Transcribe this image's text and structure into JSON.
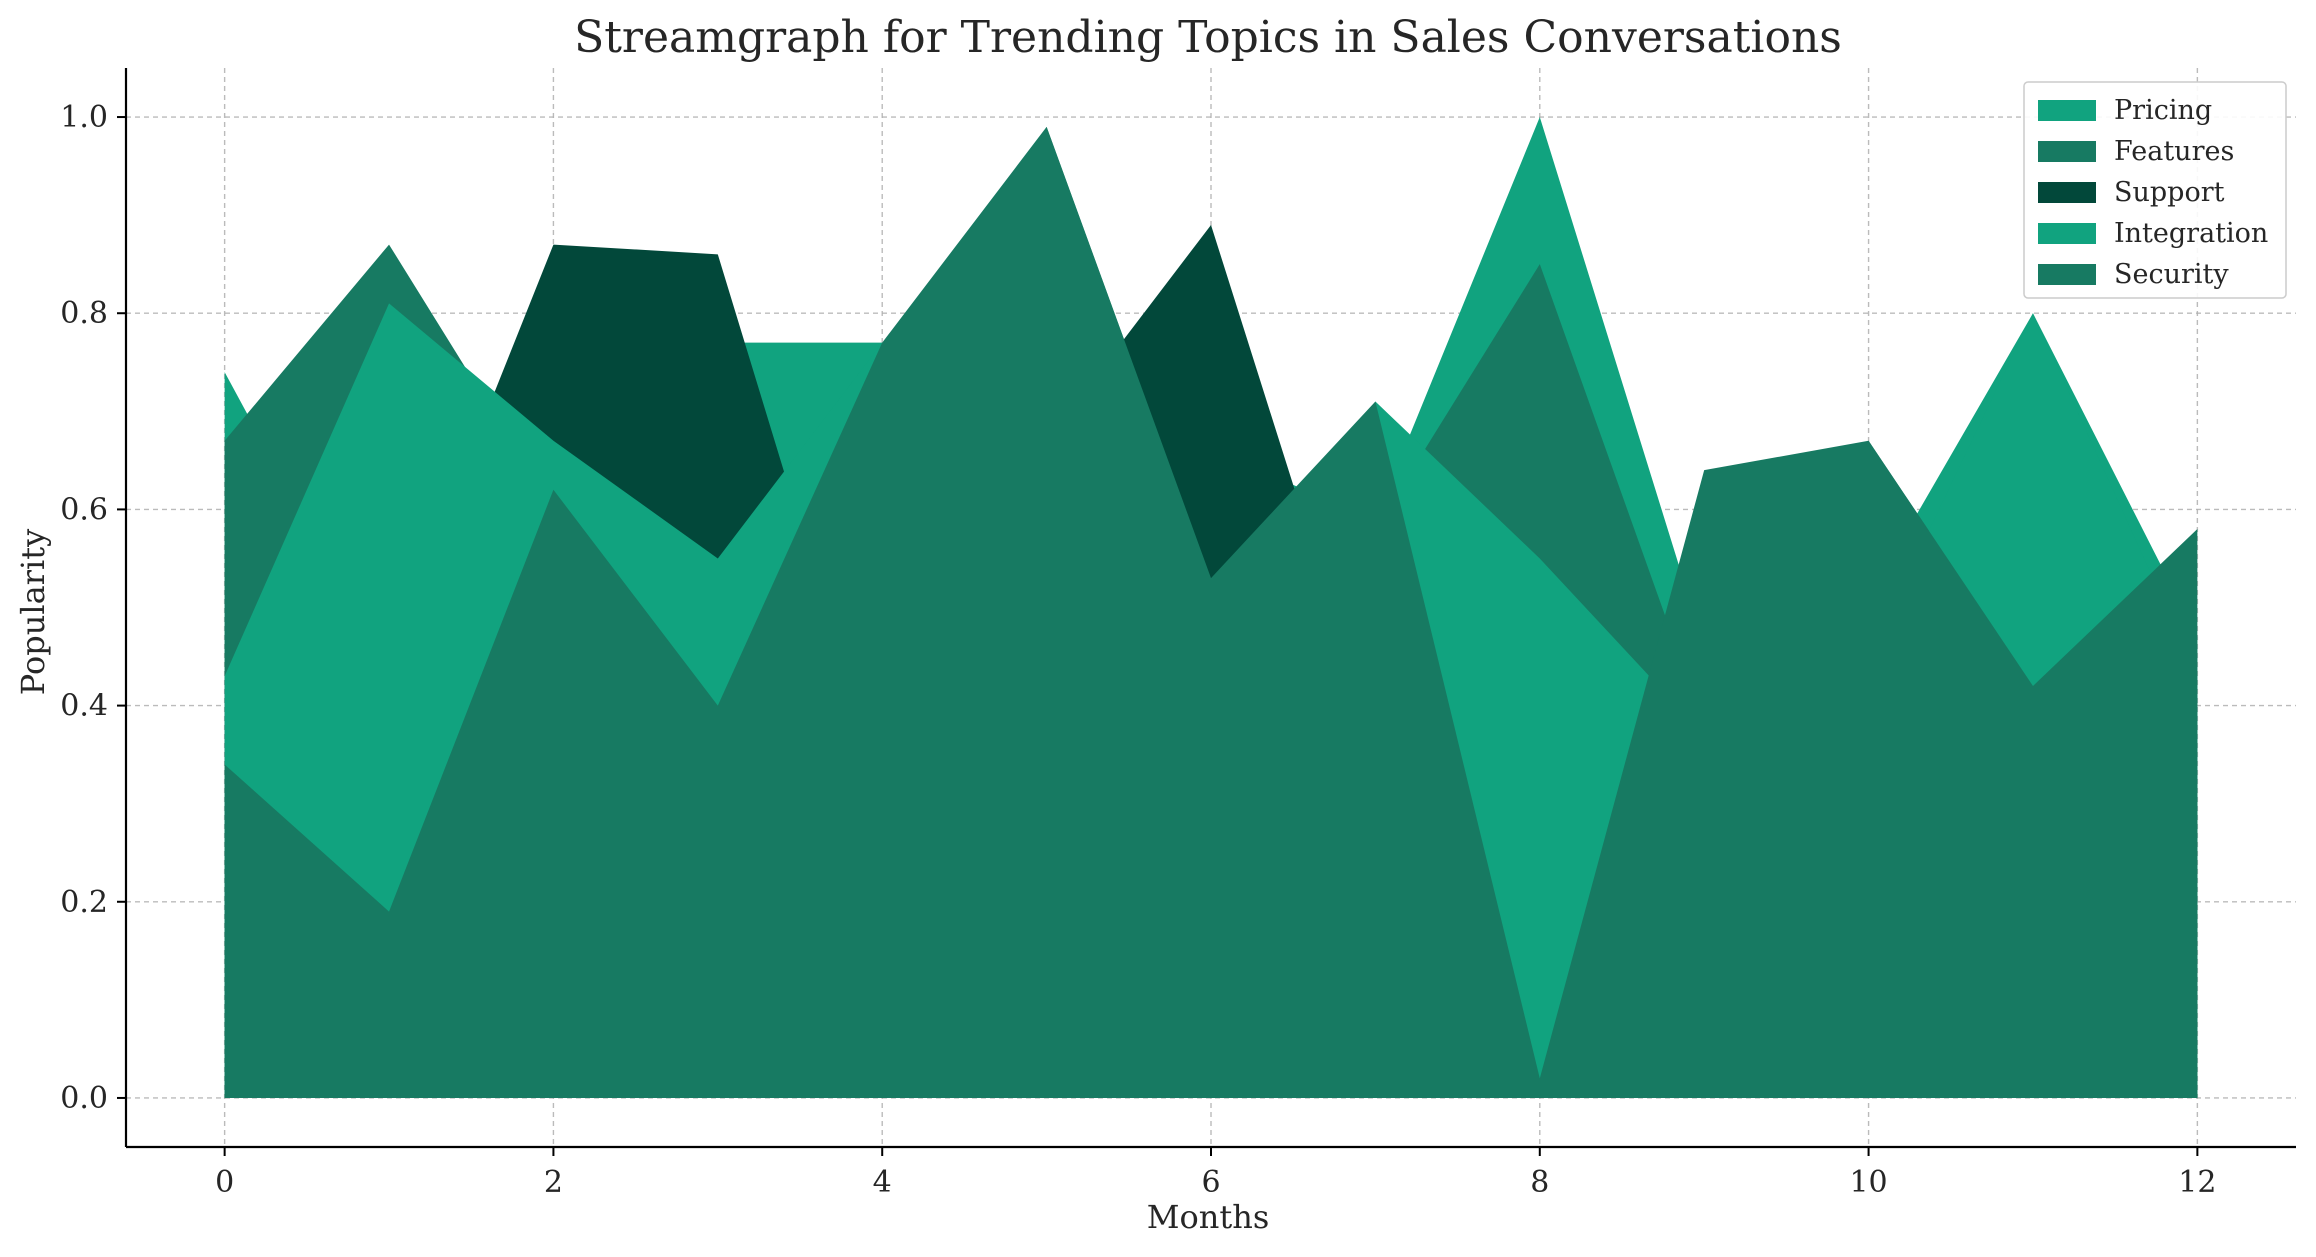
{
  "chart_data": {
    "type": "area",
    "title": "Streamgraph for Trending Topics in Sales Conversations",
    "xlabel": "Months",
    "ylabel": "Popularity",
    "xlim": [
      -0.6,
      12.6
    ],
    "ylim": [
      -0.05,
      1.05
    ],
    "x_ticks": [
      0,
      2,
      4,
      6,
      8,
      10,
      12
    ],
    "y_ticks": [
      0.0,
      0.2,
      0.4,
      0.6,
      0.8,
      1.0
    ],
    "grid": true,
    "legend_position": "top-right",
    "x": [
      0,
      1,
      2,
      3,
      4,
      5,
      6,
      7,
      8,
      9,
      10,
      11,
      12
    ],
    "series": [
      {
        "name": "Pricing",
        "color": "#11a37f",
        "values": [
          0.74,
          0.43,
          0.62,
          0.77,
          0.77,
          0.69,
          0.66,
          0.59,
          1.0,
          0.46,
          0.51,
          0.8,
          0.47
        ]
      },
      {
        "name": "Features",
        "color": "#177a62",
        "values": [
          0.67,
          0.87,
          0.6,
          0.42,
          0.52,
          0.99,
          0.53,
          0.58,
          0.85,
          0.38,
          0.67,
          0.42,
          0.41
        ]
      },
      {
        "name": "Support",
        "color": "#02483a",
        "values": [
          0.43,
          0.45,
          0.87,
          0.86,
          0.31,
          0.67,
          0.89,
          0.36,
          0.29,
          0.48,
          0.37,
          0.31,
          0.32
        ]
      },
      {
        "name": "Integration",
        "color": "#11a37f",
        "values": [
          0.43,
          0.81,
          0.67,
          0.55,
          0.77,
          0.59,
          0.43,
          0.71,
          0.55,
          0.37,
          0.45,
          0.8,
          0.43
        ]
      },
      {
        "name": "Security",
        "color": "#177a62",
        "values": [
          0.34,
          0.19,
          0.62,
          0.4,
          0.77,
          0.99,
          0.53,
          0.71,
          0.02,
          0.64,
          0.67,
          0.42,
          0.58
        ]
      }
    ]
  }
}
